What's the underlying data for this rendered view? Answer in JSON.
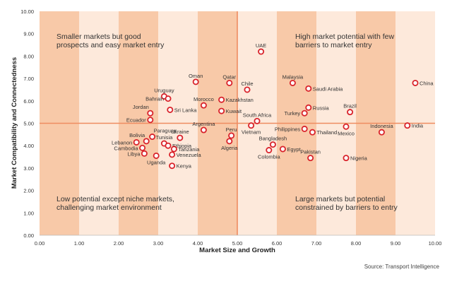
{
  "chart_data": {
    "type": "scatter",
    "title": "",
    "xlabel": "Market Size and Growth",
    "ylabel": "Market Compatibility and Connectedness",
    "xlim": [
      0,
      10
    ],
    "ylim": [
      0,
      10
    ],
    "x_ticks": [
      "0.00",
      "1.00",
      "2.00",
      "3.00",
      "4.00",
      "5.00",
      "6.00",
      "7.00",
      "8.00",
      "9.00",
      "10.00"
    ],
    "y_ticks": [
      "0.00",
      "1.00",
      "2.00",
      "3.00",
      "4.00",
      "5.00",
      "6.00",
      "7.00",
      "8.00",
      "9.00",
      "10.00"
    ],
    "divider_x": 5.0,
    "divider_y": 5.0,
    "grid": false,
    "quadrant_labels": [
      {
        "position": "top-left",
        "lines": [
          "Smaller markets but good",
          "prospects and easy market entry"
        ]
      },
      {
        "position": "top-right",
        "lines": [
          "High market potential with few",
          "barriers to market entry"
        ]
      },
      {
        "position": "bottom-left",
        "lines": [
          "Low potential except niche markets,",
          "challenging market environment"
        ]
      },
      {
        "position": "bottom-right",
        "lines": [
          "Large markets but potential",
          "constrained by barriers to entry"
        ]
      }
    ],
    "points": [
      {
        "label": "UAE",
        "x": 5.6,
        "y": 8.2,
        "label_pos": "above"
      },
      {
        "label": "China",
        "x": 9.5,
        "y": 6.8,
        "label_pos": "right"
      },
      {
        "label": "Malaysia",
        "x": 6.4,
        "y": 6.8,
        "label_pos": "above"
      },
      {
        "label": "Saudi Arabia",
        "x": 6.8,
        "y": 6.55,
        "label_pos": "right"
      },
      {
        "label": "Qatar",
        "x": 4.8,
        "y": 6.8,
        "label_pos": "above"
      },
      {
        "label": "Oman",
        "x": 3.95,
        "y": 6.85,
        "label_pos": "above"
      },
      {
        "label": "Chile",
        "x": 5.25,
        "y": 6.5,
        "label_pos": "above"
      },
      {
        "label": "Uruguay",
        "x": 3.15,
        "y": 6.2,
        "label_pos": "above"
      },
      {
        "label": "Bahrain",
        "x": 3.25,
        "y": 6.1,
        "label_pos": "left"
      },
      {
        "label": "Morocco",
        "x": 4.15,
        "y": 5.8,
        "label_pos": "above"
      },
      {
        "label": "Kazakhstan",
        "x": 4.6,
        "y": 6.05,
        "label_pos": "right"
      },
      {
        "label": "Sri Lanka",
        "x": 3.3,
        "y": 5.6,
        "label_pos": "right"
      },
      {
        "label": "Jordan",
        "x": 2.8,
        "y": 5.45,
        "label_pos": "left-above"
      },
      {
        "label": "Kuwait",
        "x": 4.6,
        "y": 5.55,
        "label_pos": "right"
      },
      {
        "label": "Russia",
        "x": 6.8,
        "y": 5.7,
        "label_pos": "right"
      },
      {
        "label": "Brazil",
        "x": 7.85,
        "y": 5.5,
        "label_pos": "above"
      },
      {
        "label": "Turkey",
        "x": 6.7,
        "y": 5.45,
        "label_pos": "left"
      },
      {
        "label": "Ecuador",
        "x": 2.8,
        "y": 5.15,
        "label_pos": "left"
      },
      {
        "label": "South Africa",
        "x": 5.5,
        "y": 5.1,
        "label_pos": "above"
      },
      {
        "label": "Vietnam",
        "x": 5.35,
        "y": 4.9,
        "label_pos": "below"
      },
      {
        "label": "Philippines",
        "x": 6.7,
        "y": 4.75,
        "label_pos": "left"
      },
      {
        "label": "Thailand",
        "x": 6.9,
        "y": 4.6,
        "label_pos": "right"
      },
      {
        "label": "Indonesia",
        "x": 8.65,
        "y": 4.6,
        "label_pos": "above"
      },
      {
        "label": "India",
        "x": 9.3,
        "y": 4.9,
        "label_pos": "right"
      },
      {
        "label": "Mexico",
        "x": 7.75,
        "y": 4.85,
        "label_pos": "below"
      },
      {
        "label": "Argentina",
        "x": 4.15,
        "y": 4.7,
        "label_pos": "above"
      },
      {
        "label": "Peru",
        "x": 4.85,
        "y": 4.45,
        "label_pos": "above"
      },
      {
        "label": "Paraguay",
        "x": 2.85,
        "y": 4.4,
        "label_pos": "right-above"
      },
      {
        "label": "Ukraine",
        "x": 3.55,
        "y": 4.35,
        "label_pos": "above"
      },
      {
        "label": "Bolivia",
        "x": 2.7,
        "y": 4.2,
        "label_pos": "left-above"
      },
      {
        "label": "Tunisia",
        "x": 3.15,
        "y": 4.1,
        "label_pos": "above"
      },
      {
        "label": "Lebanon",
        "x": 2.45,
        "y": 4.15,
        "label_pos": "left"
      },
      {
        "label": "Ethiopia",
        "x": 3.25,
        "y": 4.0,
        "label_pos": "right"
      },
      {
        "label": "Algeria",
        "x": 4.8,
        "y": 4.2,
        "label_pos": "below"
      },
      {
        "label": "Bangladesh",
        "x": 5.9,
        "y": 4.05,
        "label_pos": "above"
      },
      {
        "label": "Cambodia",
        "x": 2.6,
        "y": 3.9,
        "label_pos": "left"
      },
      {
        "label": "Tanzania",
        "x": 3.4,
        "y": 3.85,
        "label_pos": "right"
      },
      {
        "label": "Egypt",
        "x": 6.15,
        "y": 3.85,
        "label_pos": "right"
      },
      {
        "label": "Colombia",
        "x": 5.8,
        "y": 3.8,
        "label_pos": "below"
      },
      {
        "label": "Libya",
        "x": 2.65,
        "y": 3.65,
        "label_pos": "left"
      },
      {
        "label": "Venezuela",
        "x": 3.35,
        "y": 3.6,
        "label_pos": "right"
      },
      {
        "label": "Uganda",
        "x": 2.95,
        "y": 3.55,
        "label_pos": "below"
      },
      {
        "label": "Pakistan",
        "x": 6.85,
        "y": 3.45,
        "label_pos": "above"
      },
      {
        "label": "Nigeria",
        "x": 7.75,
        "y": 3.45,
        "label_pos": "right"
      },
      {
        "label": "Kenya",
        "x": 3.35,
        "y": 3.1,
        "label_pos": "right"
      }
    ],
    "colors": {
      "band_dark": "#f8c9a8",
      "band_light": "#fde9db",
      "divider": "#ee8c61",
      "marker_stroke": "#d9232b",
      "marker_fill": "#ffffff"
    }
  },
  "source": "Source: Transport Intelligence"
}
